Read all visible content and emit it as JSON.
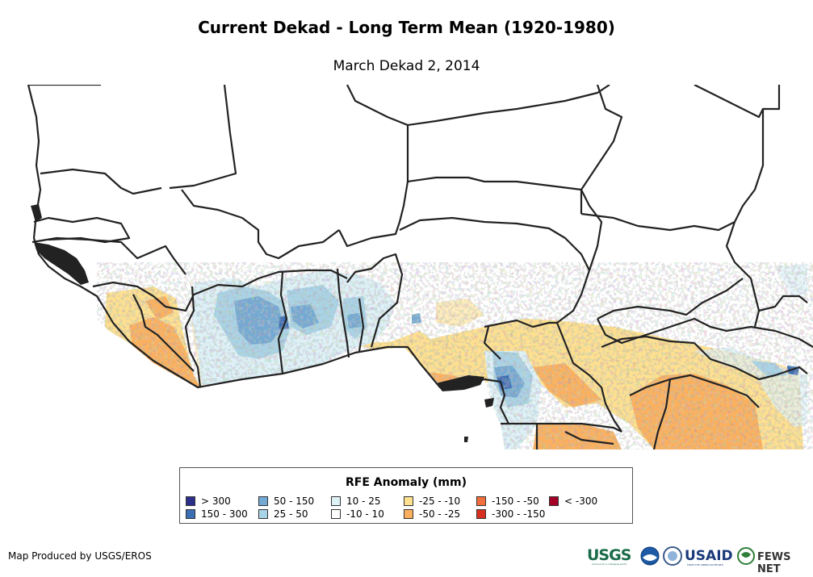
{
  "header": {
    "title": "Current Dekad - Long Term Mean (1920-1980)",
    "subtitle": "March Dekad 2, 2014"
  },
  "legend": {
    "title": "RFE Anomaly (mm)",
    "items": [
      {
        "label": "> 300",
        "color": "#2c2f8a"
      },
      {
        "label": "150 - 300",
        "color": "#3b6eb4"
      },
      {
        "label": "50 - 150",
        "color": "#74a9d3"
      },
      {
        "label": "25 - 50",
        "color": "#a9d3e6"
      },
      {
        "label": "10 - 25",
        "color": "#def1f7"
      },
      {
        "label": "-10 - 10",
        "color": "#ffffff"
      },
      {
        "label": "-25 - -10",
        "color": "#fee08f"
      },
      {
        "label": "-50 - -25",
        "color": "#fcb05c"
      },
      {
        "label": "-150 - -50",
        "color": "#f06d3c"
      },
      {
        "label": "-300 - -150",
        "color": "#d7301f"
      },
      {
        "label": "< -300",
        "color": "#a50026"
      }
    ]
  },
  "footer": {
    "credit": "Map Produced by USGS/EROS",
    "logos": [
      "USGS",
      "NOAA",
      "USAID",
      "FEWS NET"
    ],
    "usgs_tagline": "science for a changing world",
    "usaid_tagline": "FROM THE AMERICAN PEOPLE"
  }
}
